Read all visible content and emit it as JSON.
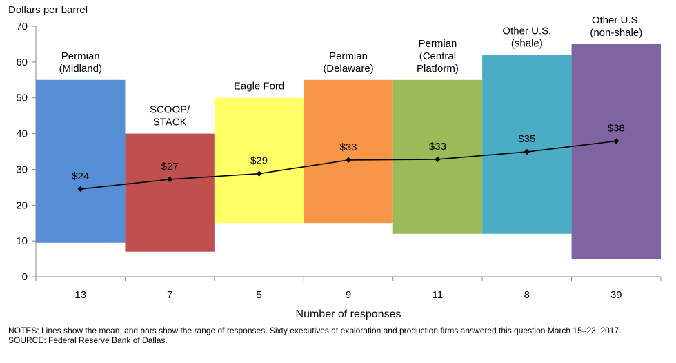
{
  "chart_data": {
    "type": "bar",
    "subtype": "floating-range-bars-with-mean-line",
    "ylabel": "Dollars per barrel",
    "xlabel": "Number of responses",
    "ylim": [
      0,
      70
    ],
    "yticks": [
      0,
      10,
      20,
      30,
      40,
      50,
      60,
      70
    ],
    "grid": false,
    "series": [
      {
        "role": "range-bars"
      },
      {
        "role": "mean-line",
        "color": "#000000"
      }
    ],
    "bars": [
      {
        "label": [
          "Permian",
          "(Midland)"
        ],
        "responses": "13",
        "low": 9.5,
        "high": 55,
        "mean": 24.5,
        "mean_label": "$24",
        "color": "#558ED5"
      },
      {
        "label": [
          "SCOOP/",
          "STACK"
        ],
        "responses": "7",
        "low": 7,
        "high": 40,
        "mean": 27.2,
        "mean_label": "$27",
        "color": "#C0504D"
      },
      {
        "label": [
          "Eagle Ford"
        ],
        "responses": "5",
        "low": 15,
        "high": 50,
        "mean": 28.8,
        "mean_label": "$29",
        "color": "#FFFF66"
      },
      {
        "label": [
          "Permian",
          "(Delaware)"
        ],
        "responses": "9",
        "low": 15,
        "high": 55,
        "mean": 32.6,
        "mean_label": "$33",
        "color": "#F79646"
      },
      {
        "label": [
          "Permian",
          "(Central",
          "Platform)"
        ],
        "responses": "11",
        "low": 12,
        "high": 55,
        "mean": 32.8,
        "mean_label": "$33",
        "color": "#9BBB59"
      },
      {
        "label": [
          "Other U.S.",
          "(shale)"
        ],
        "responses": "8",
        "low": 12,
        "high": 62,
        "mean": 34.9,
        "mean_label": "$35",
        "color": "#4BACC6"
      },
      {
        "label": [
          "Other U.S.",
          "(non-shale)"
        ],
        "responses": "39",
        "low": 5,
        "high": 65,
        "mean": 37.9,
        "mean_label": "$38",
        "color": "#8064A2"
      }
    ]
  },
  "notes": {
    "notes_text": "NOTES: Lines show the mean, and bars show the range of responses. Sixty executives at exploration and production firms answered this question March 15–23, 2017.",
    "source_text": "SOURCE: Federal Reserve Bank of Dallas."
  }
}
